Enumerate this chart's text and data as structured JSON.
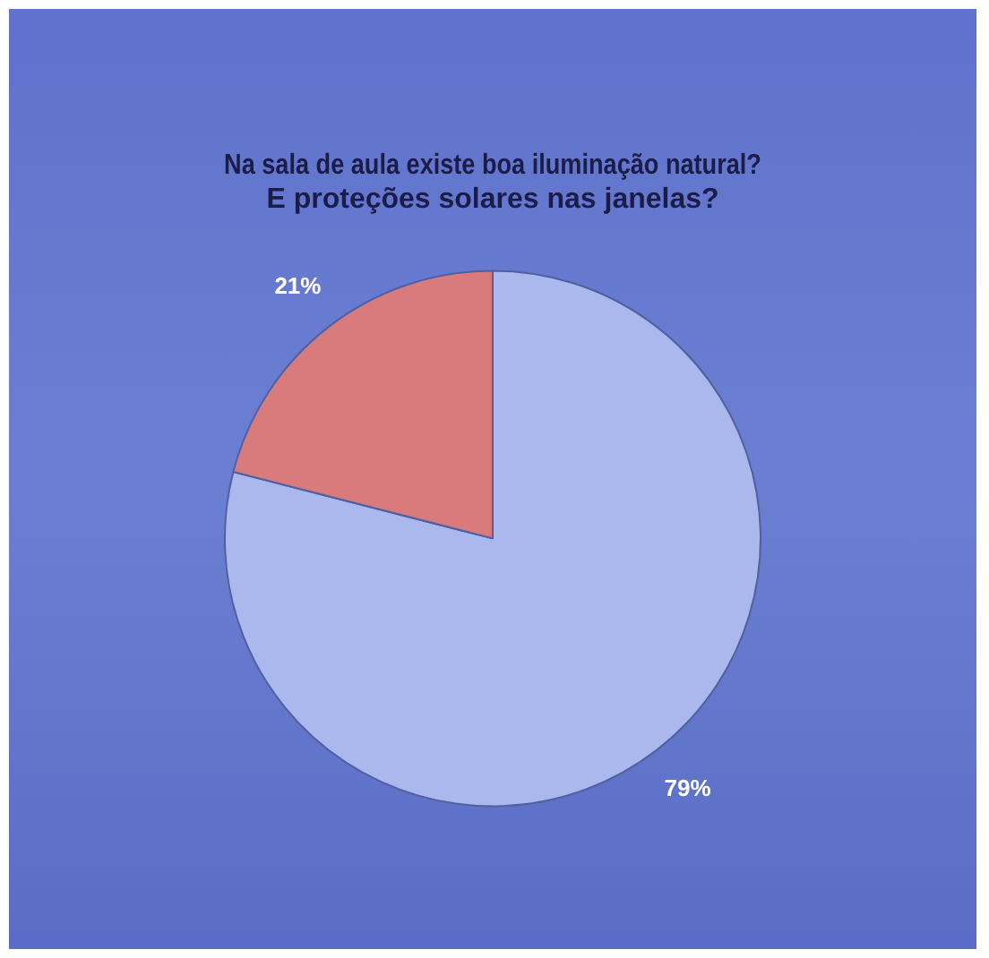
{
  "chart_data": {
    "type": "pie",
    "title": "Na sala de aula existe boa iluminação natural? E proteções solares nas janelas?",
    "categories": [
      null,
      null
    ],
    "values": [
      79,
      21
    ],
    "colors": [
      "#aab8ee",
      "#d97a7c"
    ],
    "value_labels": [
      "79%",
      "21%"
    ],
    "legend": false
  }
}
